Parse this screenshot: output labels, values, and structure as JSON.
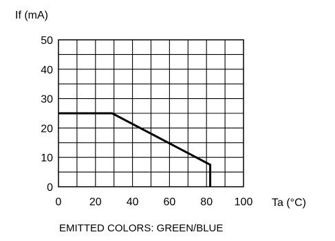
{
  "chart_data": {
    "type": "line",
    "ylabel": "If (mA)",
    "xlabel": "Ta (°C)",
    "xlim": [
      0,
      100
    ],
    "ylim": [
      0,
      50
    ],
    "x_ticks": [
      "0",
      "20",
      "40",
      "60",
      "80",
      "100"
    ],
    "y_ticks": [
      "0",
      "10",
      "20",
      "30",
      "40",
      "50"
    ],
    "grid": true,
    "series": [
      {
        "x": [
          0,
          29,
          82,
          82
        ],
        "y": [
          25,
          25,
          7.5,
          0
        ],
        "color": "#000000"
      }
    ],
    "annotation": "EMITTED COLORS: GREEN/BLUE"
  }
}
